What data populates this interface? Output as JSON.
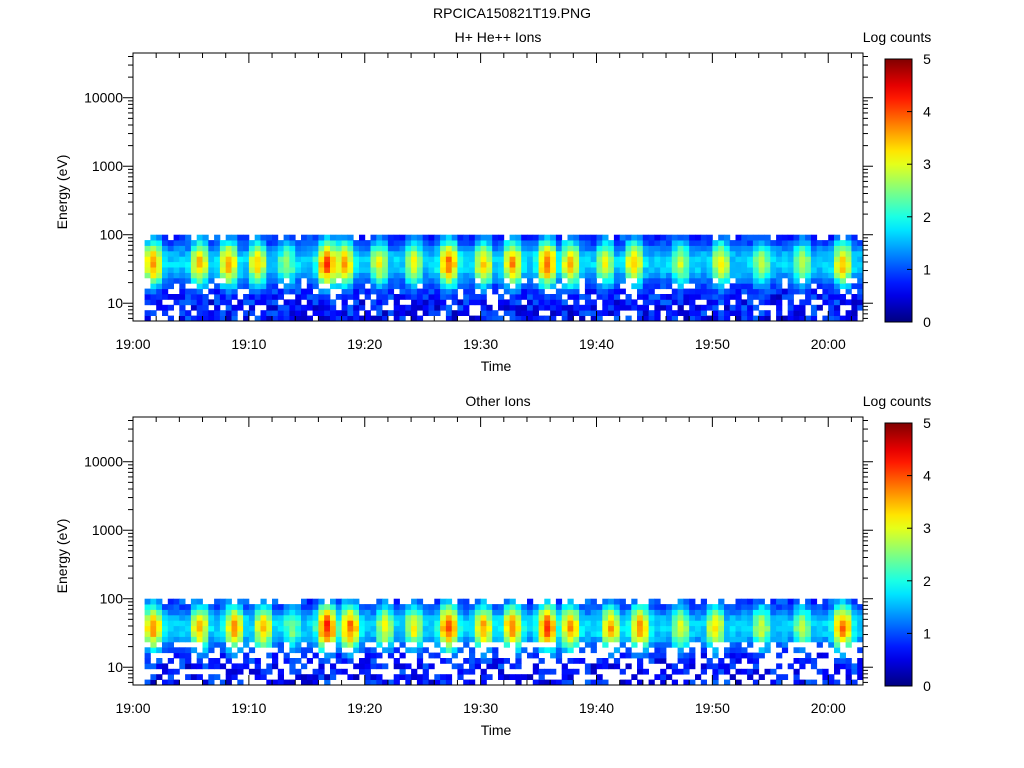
{
  "figure": {
    "title": "RPCICA150821T19.PNG"
  },
  "chart_data": [
    {
      "type": "heatmap",
      "title": "H+ He++ Ions",
      "xlabel": "Time",
      "ylabel": "Energy (eV)",
      "x_ticks": [
        "19:00",
        "19:10",
        "19:20",
        "19:30",
        "19:40",
        "19:50",
        "20:00"
      ],
      "xlim": [
        "19:00",
        "20:03"
      ],
      "y_scale": "log",
      "ylim": [
        5.5,
        45000
      ],
      "y_ticks": [
        10,
        100,
        1000,
        10000
      ],
      "y_tick_labels": [
        "10",
        "100",
        "1000",
        "10000"
      ],
      "data_energy_range_eV": [
        5.5,
        100
      ],
      "colorbar": {
        "label": "Log counts",
        "range": [
          0,
          5
        ],
        "ticks": [
          "0",
          "1",
          "2",
          "3",
          "4",
          "5"
        ]
      },
      "peak_energy_eV": 35,
      "peaks": [
        {
          "time": "19:01.5",
          "log_counts": 3.6
        },
        {
          "time": "19:05.5",
          "log_counts": 3.4
        },
        {
          "time": "19:08.0",
          "log_counts": 3.5
        },
        {
          "time": "19:10.5",
          "log_counts": 3.3
        },
        {
          "time": "19:13.0",
          "log_counts": 2.6
        },
        {
          "time": "19:16.5",
          "log_counts": 4.0
        },
        {
          "time": "19:18.0",
          "log_counts": 3.6
        },
        {
          "time": "19:21.0",
          "log_counts": 3.0
        },
        {
          "time": "19:24.0",
          "log_counts": 3.0
        },
        {
          "time": "19:27.0",
          "log_counts": 3.8
        },
        {
          "time": "19:30.0",
          "log_counts": 3.3
        },
        {
          "time": "19:32.5",
          "log_counts": 3.6
        },
        {
          "time": "19:35.5",
          "log_counts": 3.9
        },
        {
          "time": "19:37.5",
          "log_counts": 3.4
        },
        {
          "time": "19:40.5",
          "log_counts": 3.0
        },
        {
          "time": "19:43.0",
          "log_counts": 3.4
        },
        {
          "time": "19:47.0",
          "log_counts": 2.8
        },
        {
          "time": "19:50.5",
          "log_counts": 3.1
        },
        {
          "time": "19:54.0",
          "log_counts": 2.7
        },
        {
          "time": "19:57.5",
          "log_counts": 2.8
        },
        {
          "time": "20:01.0",
          "log_counts": 3.4
        }
      ]
    },
    {
      "type": "heatmap",
      "title": "Other Ions",
      "xlabel": "Time",
      "ylabel": "Energy (eV)",
      "x_ticks": [
        "19:00",
        "19:10",
        "19:20",
        "19:30",
        "19:40",
        "19:50",
        "20:00"
      ],
      "xlim": [
        "19:00",
        "20:03"
      ],
      "y_scale": "log",
      "ylim": [
        5.5,
        45000
      ],
      "y_ticks": [
        10,
        100,
        1000,
        10000
      ],
      "y_tick_labels": [
        "10",
        "100",
        "1000",
        "10000"
      ],
      "data_energy_range_eV": [
        5.5,
        100
      ],
      "colorbar": {
        "label": "Log counts",
        "range": [
          0,
          5
        ],
        "ticks": [
          "0",
          "1",
          "2",
          "3",
          "4",
          "5"
        ]
      },
      "peak_energy_eV": 35,
      "peaks": [
        {
          "time": "19:01.5",
          "log_counts": 3.6
        },
        {
          "time": "19:05.5",
          "log_counts": 3.4
        },
        {
          "time": "19:08.5",
          "log_counts": 3.6
        },
        {
          "time": "19:11.0",
          "log_counts": 3.4
        },
        {
          "time": "19:13.5",
          "log_counts": 2.5
        },
        {
          "time": "19:16.5",
          "log_counts": 4.2
        },
        {
          "time": "19:18.5",
          "log_counts": 3.8
        },
        {
          "time": "19:21.5",
          "log_counts": 3.0
        },
        {
          "time": "19:24.0",
          "log_counts": 3.1
        },
        {
          "time": "19:27.0",
          "log_counts": 4.0
        },
        {
          "time": "19:30.0",
          "log_counts": 3.5
        },
        {
          "time": "19:32.5",
          "log_counts": 3.7
        },
        {
          "time": "19:35.5",
          "log_counts": 4.0
        },
        {
          "time": "19:37.5",
          "log_counts": 3.6
        },
        {
          "time": "19:41.0",
          "log_counts": 3.5
        },
        {
          "time": "19:43.5",
          "log_counts": 3.7
        },
        {
          "time": "19:47.0",
          "log_counts": 2.9
        },
        {
          "time": "19:50.0",
          "log_counts": 3.2
        },
        {
          "time": "19:54.0",
          "log_counts": 2.8
        },
        {
          "time": "19:57.5",
          "log_counts": 2.7
        },
        {
          "time": "20:01.0",
          "log_counts": 3.8
        }
      ]
    }
  ]
}
